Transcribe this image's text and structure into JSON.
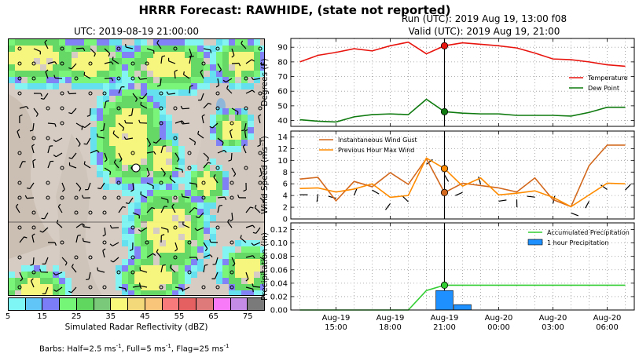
{
  "header": {
    "title": "HRRR Forecast: RAWHIDE, (state not reported)",
    "map_title": "UTC: 2019-08-19 21:00:00",
    "run_line": "Run (UTC): 2019 Aug 19, 13:00 f08",
    "valid_line": "Valid (UTC): 2019 Aug 19, 21:00"
  },
  "colorbar": {
    "label": "Simulated Radar Reflectivity (dBZ)",
    "ticks": [
      "5",
      "15",
      "25",
      "35",
      "45",
      "55",
      "65",
      "75"
    ],
    "colors": [
      "#7ff6f6",
      "#61c5f8",
      "#7b7df8",
      "#76f676",
      "#60d860",
      "#7ac97a",
      "#f8f87a",
      "#f3d97a",
      "#f8c57a",
      "#f87a7a",
      "#e56060",
      "#df7a7a",
      "#f87af8",
      "#c48ce4",
      "#7a7a7a"
    ]
  },
  "barb_note": {
    "prefix": "Barbs: Half=2.5 ms",
    "sup1": "-1",
    "mid1": ", Full=5 ms",
    "sup2": "-1",
    "mid2": ", Flag=25 ms",
    "sup3": "-1"
  },
  "colors": {
    "temperature": "#e8140e",
    "dew_point": "#0f7a0f",
    "gust": "#d2691e",
    "max_wind": "#ff8c00",
    "accum_precip": "#32cd32",
    "hourly_precip": "#1e90ff"
  },
  "chart_data": [
    {
      "type": "line",
      "x": [
        "13:00",
        "14:00",
        "15:00",
        "16:00",
        "17:00",
        "18:00",
        "19:00",
        "20:00",
        "21:00",
        "22:00",
        "23:00",
        "00:00",
        "01:00",
        "02:00",
        "03:00",
        "04:00",
        "05:00",
        "06:00",
        "07:00"
      ],
      "x_tick_labels": [
        [
          "Aug-19",
          "15:00"
        ],
        [
          "Aug-19",
          "18:00"
        ],
        [
          "Aug-19",
          "21:00"
        ],
        [
          "Aug-20",
          "00:00"
        ],
        [
          "Aug-20",
          "03:00"
        ],
        [
          "Aug-20",
          "06:00"
        ]
      ],
      "ylabel": "Degrees (F)",
      "ylim": [
        36,
        96
      ],
      "yticks": [
        40,
        50,
        60,
        70,
        80,
        90
      ],
      "grid": true,
      "legend": "right",
      "highlight_x": "21:00",
      "series": [
        {
          "name": "Temperature",
          "values": [
            80,
            84.5,
            86.5,
            89,
            87.5,
            91,
            93.5,
            85.5,
            91,
            93,
            92,
            91,
            89.5,
            86,
            82,
            81.5,
            80,
            78,
            77
          ]
        },
        {
          "name": "Dew Point",
          "values": [
            40.5,
            39.5,
            39,
            42.5,
            44,
            44.5,
            44,
            54.5,
            46,
            45,
            44.5,
            44.5,
            43.5,
            43.5,
            43.5,
            43,
            45.5,
            49,
            49
          ]
        }
      ]
    },
    {
      "type": "line",
      "x": [
        "13:00",
        "14:00",
        "15:00",
        "16:00",
        "17:00",
        "18:00",
        "19:00",
        "20:00",
        "21:00",
        "22:00",
        "23:00",
        "00:00",
        "01:00",
        "02:00",
        "03:00",
        "04:00",
        "05:00",
        "06:00",
        "07:00"
      ],
      "ylabel": "Wind Speed (ms⁻¹)",
      "ylim": [
        0,
        15
      ],
      "yticks": [
        0,
        2,
        4,
        6,
        8,
        10,
        12,
        14
      ],
      "grid": true,
      "legend": "top-left",
      "highlight_x": "21:00",
      "series": [
        {
          "name": "Instantaneous Wind Gust",
          "values": [
            6.8,
            7.1,
            3.1,
            6.4,
            5.5,
            7.9,
            5.9,
            10.3,
            4.5,
            6.1,
            5.7,
            5.3,
            4.6,
            7.0,
            3.3,
            2.1,
            9.1,
            12.6,
            12.6
          ]
        },
        {
          "name": "Previous Hour Max Wind",
          "values": [
            5.2,
            5.3,
            4.6,
            5.1,
            6.0,
            3.7,
            4.0,
            10.4,
            8.6,
            5.6,
            7.0,
            4.1,
            4.4,
            4.8,
            3.7,
            2.1,
            4.1,
            6.1,
            6.0
          ]
        }
      ]
    },
    {
      "type": "bar",
      "x": [
        "13:00",
        "14:00",
        "15:00",
        "16:00",
        "17:00",
        "18:00",
        "19:00",
        "20:00",
        "21:00",
        "22:00",
        "23:00",
        "00:00",
        "01:00",
        "02:00",
        "03:00",
        "04:00",
        "05:00",
        "06:00",
        "07:00"
      ],
      "ylabel": "Precipitation (in)",
      "ylim": [
        0,
        0.13
      ],
      "yticks": [
        "0.00",
        "0.02",
        "0.04",
        "0.06",
        "0.08",
        "0.10",
        "0.12"
      ],
      "grid": true,
      "legend": "top-right",
      "highlight_x": "21:00",
      "series": [
        {
          "name": "Accumulated Precipitation",
          "type": "line",
          "values": [
            0,
            0,
            0,
            0,
            0,
            0,
            0,
            0.029,
            0.037,
            0.037,
            0.037,
            0.037,
            0.037,
            0.037,
            0.037,
            0.037,
            0.037,
            0.037,
            0.037
          ]
        },
        {
          "name": "1 hour Precipitation",
          "type": "bar",
          "values": [
            0,
            0,
            0,
            0,
            0,
            0,
            0,
            0,
            0.029,
            0.008,
            0,
            0,
            0,
            0,
            0,
            0,
            0,
            0,
            0
          ]
        }
      ]
    }
  ]
}
